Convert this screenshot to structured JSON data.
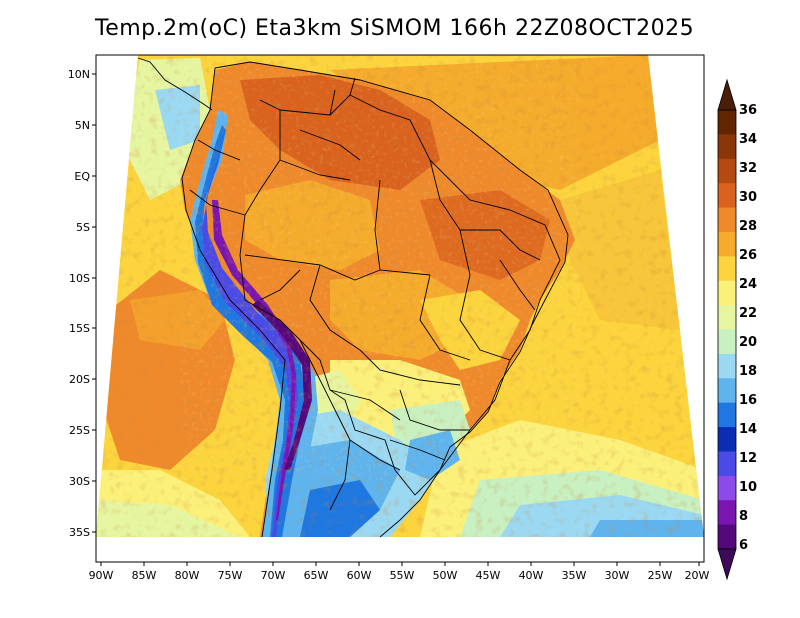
{
  "title": "Temp.2m(oC) Eta3km SiSMOM 166h 22Z08OCT2025",
  "lat_labels": [
    "10N",
    "5N",
    "EQ",
    "5S",
    "10S",
    "15S",
    "20S",
    "25S",
    "30S",
    "35S"
  ],
  "lon_labels": [
    "90W",
    "85W",
    "80W",
    "75W",
    "70W",
    "65W",
    "60W",
    "55W",
    "50W",
    "45W",
    "40W",
    "35W",
    "30W",
    "25W",
    "20W"
  ],
  "colorbar": {
    "labels": [
      "36",
      "34",
      "32",
      "30",
      "28",
      "26",
      "24",
      "22",
      "20",
      "18",
      "16",
      "14",
      "12",
      "10",
      "8",
      "6"
    ],
    "colors": [
      "#612500",
      "#8a3608",
      "#b34a12",
      "#d9621e",
      "#ef8a2c",
      "#f5ab2c",
      "#fbd43e",
      "#fbf07a",
      "#e6f5a0",
      "#c8f0c0",
      "#9bd9f2",
      "#5fb4ee",
      "#1f77e0",
      "#0a2db4",
      "#4a4ae6",
      "#8c4ae6",
      "#7a16b0",
      "#55087a"
    ],
    "low_extend_color": "#3d0a5a",
    "high_extend_color": "#4a1e08"
  }
}
